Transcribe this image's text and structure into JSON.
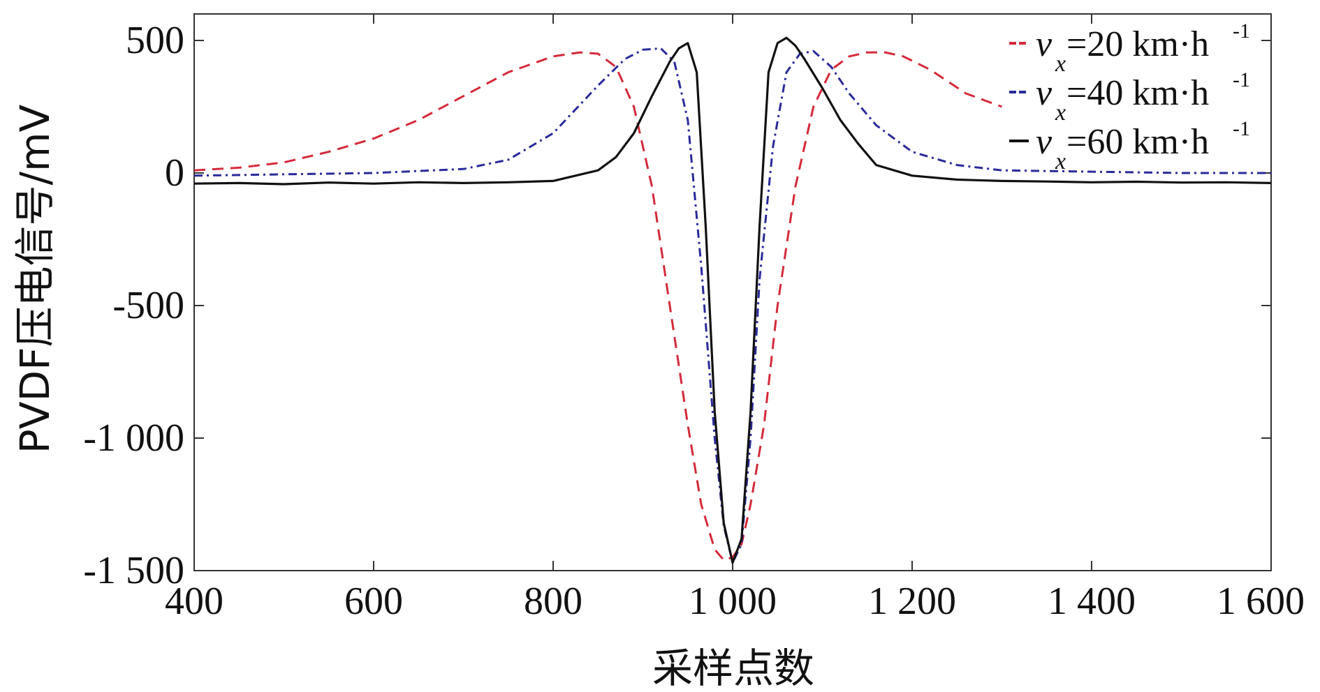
{
  "chart_data": {
    "type": "line",
    "title": "",
    "xlabel": "采样点数",
    "ylabel": "PVDF压电信号/mV",
    "xlim": [
      400,
      1600
    ],
    "ylim": [
      -1500,
      600
    ],
    "xticks": [
      400,
      600,
      800,
      1000,
      1200,
      1400,
      1600
    ],
    "xtick_labels": [
      "400",
      "600",
      "800",
      "1 000",
      "1 200",
      "1 400",
      "1 600"
    ],
    "yticks": [
      500,
      0,
      -500,
      -1000,
      -1500
    ],
    "ytick_labels": [
      "500",
      "0",
      "-500",
      "-1 000",
      "-1 500"
    ],
    "grid": false,
    "legend_position": "top-right",
    "series": [
      {
        "legend_prefix": "v",
        "legend_sub": "x",
        "legend_main": "=20 km·h",
        "legend_sup": "-1",
        "color": "#d42a3a",
        "dash": "dashed",
        "x": [
          400,
          450,
          500,
          550,
          600,
          650,
          700,
          750,
          800,
          830,
          850,
          870,
          890,
          910,
          930,
          950,
          965,
          980,
          990,
          1000,
          1010,
          1020,
          1035,
          1050,
          1070,
          1090,
          1110,
          1130,
          1150,
          1170,
          1190,
          1220,
          1260,
          1300
        ],
        "y": [
          10,
          20,
          40,
          80,
          130,
          200,
          290,
          380,
          440,
          455,
          450,
          400,
          250,
          -50,
          -500,
          -950,
          -1250,
          -1420,
          -1460,
          -1450,
          -1400,
          -1250,
          -950,
          -500,
          -50,
          250,
          390,
          440,
          455,
          455,
          440,
          390,
          300,
          250
        ]
      },
      {
        "legend_prefix": "v",
        "legend_sub": "x",
        "legend_main": "=40 km·h",
        "legend_sup": "-1",
        "color": "#2a2a9a",
        "dash": "dashdot",
        "x": [
          400,
          500,
          600,
          700,
          750,
          800,
          850,
          880,
          900,
          920,
          935,
          950,
          965,
          980,
          990,
          1000,
          1010,
          1020,
          1030,
          1045,
          1060,
          1075,
          1090,
          1110,
          1130,
          1160,
          1200,
          1250,
          1300,
          1400,
          1500,
          1600
        ],
        "y": [
          -10,
          -5,
          0,
          15,
          50,
          150,
          330,
          430,
          465,
          470,
          420,
          200,
          -350,
          -1000,
          -1330,
          -1470,
          -1400,
          -1000,
          -400,
          100,
          380,
          450,
          460,
          400,
          300,
          180,
          80,
          30,
          10,
          5,
          0,
          0
        ]
      },
      {
        "legend_prefix": "v",
        "legend_sub": "x",
        "legend_main": "=60 km·h",
        "legend_sup": "-1",
        "color": "#111111",
        "dash": "solid",
        "x": [
          400,
          450,
          500,
          550,
          600,
          650,
          700,
          750,
          800,
          850,
          870,
          890,
          910,
          930,
          940,
          950,
          960,
          970,
          980,
          990,
          1000,
          1010,
          1020,
          1030,
          1040,
          1050,
          1060,
          1070,
          1080,
          1100,
          1120,
          1140,
          1160,
          1200,
          1250,
          1300,
          1350,
          1400,
          1450,
          1500,
          1550,
          1600
        ],
        "y": [
          -40,
          -38,
          -42,
          -36,
          -40,
          -35,
          -38,
          -35,
          -30,
          10,
          60,
          150,
          290,
          420,
          470,
          490,
          380,
          -200,
          -900,
          -1320,
          -1470,
          -1380,
          -900,
          -200,
          380,
          490,
          510,
          480,
          430,
          320,
          200,
          110,
          30,
          -10,
          -25,
          -30,
          -32,
          -35,
          -33,
          -36,
          -35,
          -38
        ]
      }
    ]
  }
}
